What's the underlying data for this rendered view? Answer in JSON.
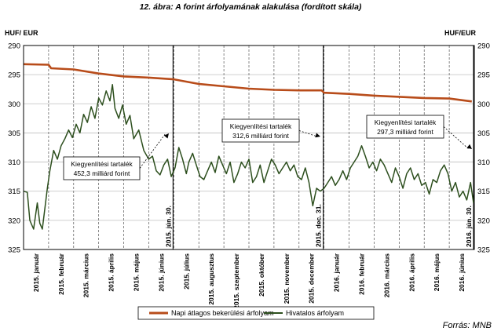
{
  "header": {
    "title": "12. ábra: A forint árfolyamának alakulása (fordított skála)"
  },
  "footer": {
    "source": "Forrás: MNB"
  },
  "chart_data": {
    "type": "line",
    "inverted_y": true,
    "ylim": [
      290,
      325
    ],
    "yticks": [
      "290",
      "295",
      "300",
      "305",
      "310",
      "315",
      "320",
      "325"
    ],
    "ylabel_left": "HUF/ EUR",
    "ylabel_right": "HUF/EUR",
    "x_month_labels": [
      "2015. január",
      "2015. február",
      "2015. március",
      "2015. április",
      "2015. május",
      "2015. június",
      "2015. július",
      "2015. augusztus",
      "2015. szeptember",
      "2015. október",
      "2015. november",
      "2015. december",
      "2016. január",
      "2016. február",
      "2016. március",
      "2016. április",
      "2016. május",
      "2016. június"
    ],
    "events": [
      {
        "label": "2015. jún. 30.",
        "month_index": 5.97
      },
      {
        "label": "2015. dec. 31.",
        "month_index": 11.97
      },
      {
        "label": "2016. jún. 30.",
        "month_index": 17.97
      }
    ],
    "annotations": [
      {
        "line1": "Kiegyenlítési tartalék",
        "line2": "452,3 milliárd forint",
        "points_to": "2015. jún. 30."
      },
      {
        "line1": "Kiegyenlítési tartalék",
        "line2": "312,6 milliárd forint",
        "points_to": "2015. dec. 31."
      },
      {
        "line1": "Kiegyenlítési tartalék",
        "line2": "297,3 milliárd forint",
        "points_to": "2016. jún. 30."
      }
    ],
    "series": [
      {
        "name": "Napi átlagos bekerülési árfolyam",
        "color": "#b84c1a",
        "points": [
          [
            0,
            293.2
          ],
          [
            1,
            293.3
          ],
          [
            1.1,
            293.9
          ],
          [
            2,
            294.1
          ],
          [
            3,
            294.8
          ],
          [
            4,
            295.3
          ],
          [
            5,
            295.5
          ],
          [
            6,
            295.8
          ],
          [
            7,
            296.6
          ],
          [
            8,
            297.0
          ],
          [
            9,
            297.4
          ],
          [
            10,
            297.6
          ],
          [
            11,
            297.7
          ],
          [
            11.9,
            297.7
          ],
          [
            12,
            298.1
          ],
          [
            13,
            298.3
          ],
          [
            14,
            298.6
          ],
          [
            15,
            298.8
          ],
          [
            16,
            299.0
          ],
          [
            17,
            299.1
          ],
          [
            17.9,
            299.6
          ]
        ]
      },
      {
        "name": "Hivatalos árfolyam",
        "color": "#2d4f1e",
        "points": [
          [
            0,
            315.0
          ],
          [
            0.15,
            315.2
          ],
          [
            0.25,
            320.0
          ],
          [
            0.4,
            321.5
          ],
          [
            0.55,
            317.0
          ],
          [
            0.65,
            320.5
          ],
          [
            0.75,
            321.5
          ],
          [
            0.85,
            318.0
          ],
          [
            0.95,
            314.5
          ],
          [
            1.05,
            311.5
          ],
          [
            1.2,
            308.0
          ],
          [
            1.35,
            309.5
          ],
          [
            1.5,
            307.2
          ],
          [
            1.65,
            306.0
          ],
          [
            1.8,
            304.5
          ],
          [
            1.95,
            305.8
          ],
          [
            2.1,
            303.5
          ],
          [
            2.25,
            305.0
          ],
          [
            2.4,
            301.8
          ],
          [
            2.55,
            303.2
          ],
          [
            2.7,
            300.5
          ],
          [
            2.85,
            302.5
          ],
          [
            3.0,
            299.0
          ],
          [
            3.15,
            300.2
          ],
          [
            3.3,
            297.8
          ],
          [
            3.45,
            299.5
          ],
          [
            3.55,
            296.7
          ],
          [
            3.65,
            300.8
          ],
          [
            3.8,
            302.5
          ],
          [
            3.95,
            300.2
          ],
          [
            4.1,
            303.5
          ],
          [
            4.25,
            302.0
          ],
          [
            4.4,
            306.0
          ],
          [
            4.6,
            304.5
          ],
          [
            4.8,
            308.0
          ],
          [
            5.0,
            309.5
          ],
          [
            5.15,
            309.0
          ],
          [
            5.3,
            311.5
          ],
          [
            5.45,
            312.2
          ],
          [
            5.6,
            310.5
          ],
          [
            5.75,
            309.5
          ],
          [
            5.9,
            312.5
          ],
          [
            6.05,
            311.0
          ],
          [
            6.2,
            307.5
          ],
          [
            6.35,
            309.5
          ],
          [
            6.5,
            312.0
          ],
          [
            6.6,
            310.0
          ],
          [
            6.75,
            308.5
          ],
          [
            6.9,
            310.5
          ],
          [
            7.05,
            312.5
          ],
          [
            7.2,
            313.0
          ],
          [
            7.35,
            311.5
          ],
          [
            7.5,
            310.0
          ],
          [
            7.65,
            311.8
          ],
          [
            7.8,
            309.0
          ],
          [
            7.95,
            310.5
          ],
          [
            8.1,
            312.0
          ],
          [
            8.25,
            310.0
          ],
          [
            8.4,
            313.5
          ],
          [
            8.55,
            312.0
          ],
          [
            8.7,
            310.0
          ],
          [
            8.85,
            311.0
          ],
          [
            9.0,
            309.5
          ],
          [
            9.15,
            313.5
          ],
          [
            9.3,
            312.5
          ],
          [
            9.45,
            310.5
          ],
          [
            9.6,
            313.5
          ],
          [
            9.75,
            311.5
          ],
          [
            9.9,
            309.5
          ],
          [
            10.05,
            310.5
          ],
          [
            10.2,
            312.0
          ],
          [
            10.35,
            311.0
          ],
          [
            10.5,
            310.0
          ],
          [
            10.65,
            311.5
          ],
          [
            10.8,
            310.5
          ],
          [
            10.95,
            312.5
          ],
          [
            11.1,
            313.0
          ],
          [
            11.25,
            311.0
          ],
          [
            11.4,
            313.5
          ],
          [
            11.55,
            317.5
          ],
          [
            11.7,
            314.5
          ],
          [
            11.85,
            315.0
          ],
          [
            12.0,
            314.5
          ],
          [
            12.15,
            313.5
          ],
          [
            12.3,
            312.5
          ],
          [
            12.45,
            314.0
          ],
          [
            12.6,
            313.0
          ],
          [
            12.75,
            311.5
          ],
          [
            12.9,
            313.0
          ],
          [
            13.05,
            311.0
          ],
          [
            13.2,
            310.0
          ],
          [
            13.35,
            309.0
          ],
          [
            13.5,
            307.2
          ],
          [
            13.65,
            309.0
          ],
          [
            13.8,
            311.0
          ],
          [
            13.95,
            310.0
          ],
          [
            14.1,
            311.5
          ],
          [
            14.25,
            309.5
          ],
          [
            14.4,
            310.5
          ],
          [
            14.55,
            312.0
          ],
          [
            14.7,
            313.5
          ],
          [
            14.85,
            311.0
          ],
          [
            15.0,
            312.5
          ],
          [
            15.15,
            314.5
          ],
          [
            15.3,
            312.0
          ],
          [
            15.45,
            311.0
          ],
          [
            15.6,
            313.0
          ],
          [
            15.75,
            312.0
          ],
          [
            15.9,
            314.0
          ],
          [
            16.05,
            313.5
          ],
          [
            16.2,
            315.5
          ],
          [
            16.35,
            313.0
          ],
          [
            16.5,
            313.5
          ],
          [
            16.65,
            311.5
          ],
          [
            16.8,
            310.5
          ],
          [
            16.95,
            312.0
          ],
          [
            17.1,
            315.0
          ],
          [
            17.25,
            313.5
          ],
          [
            17.4,
            316.0
          ],
          [
            17.55,
            315.0
          ],
          [
            17.7,
            316.5
          ],
          [
            17.85,
            313.5
          ],
          [
            17.97,
            317.0
          ]
        ]
      }
    ]
  }
}
